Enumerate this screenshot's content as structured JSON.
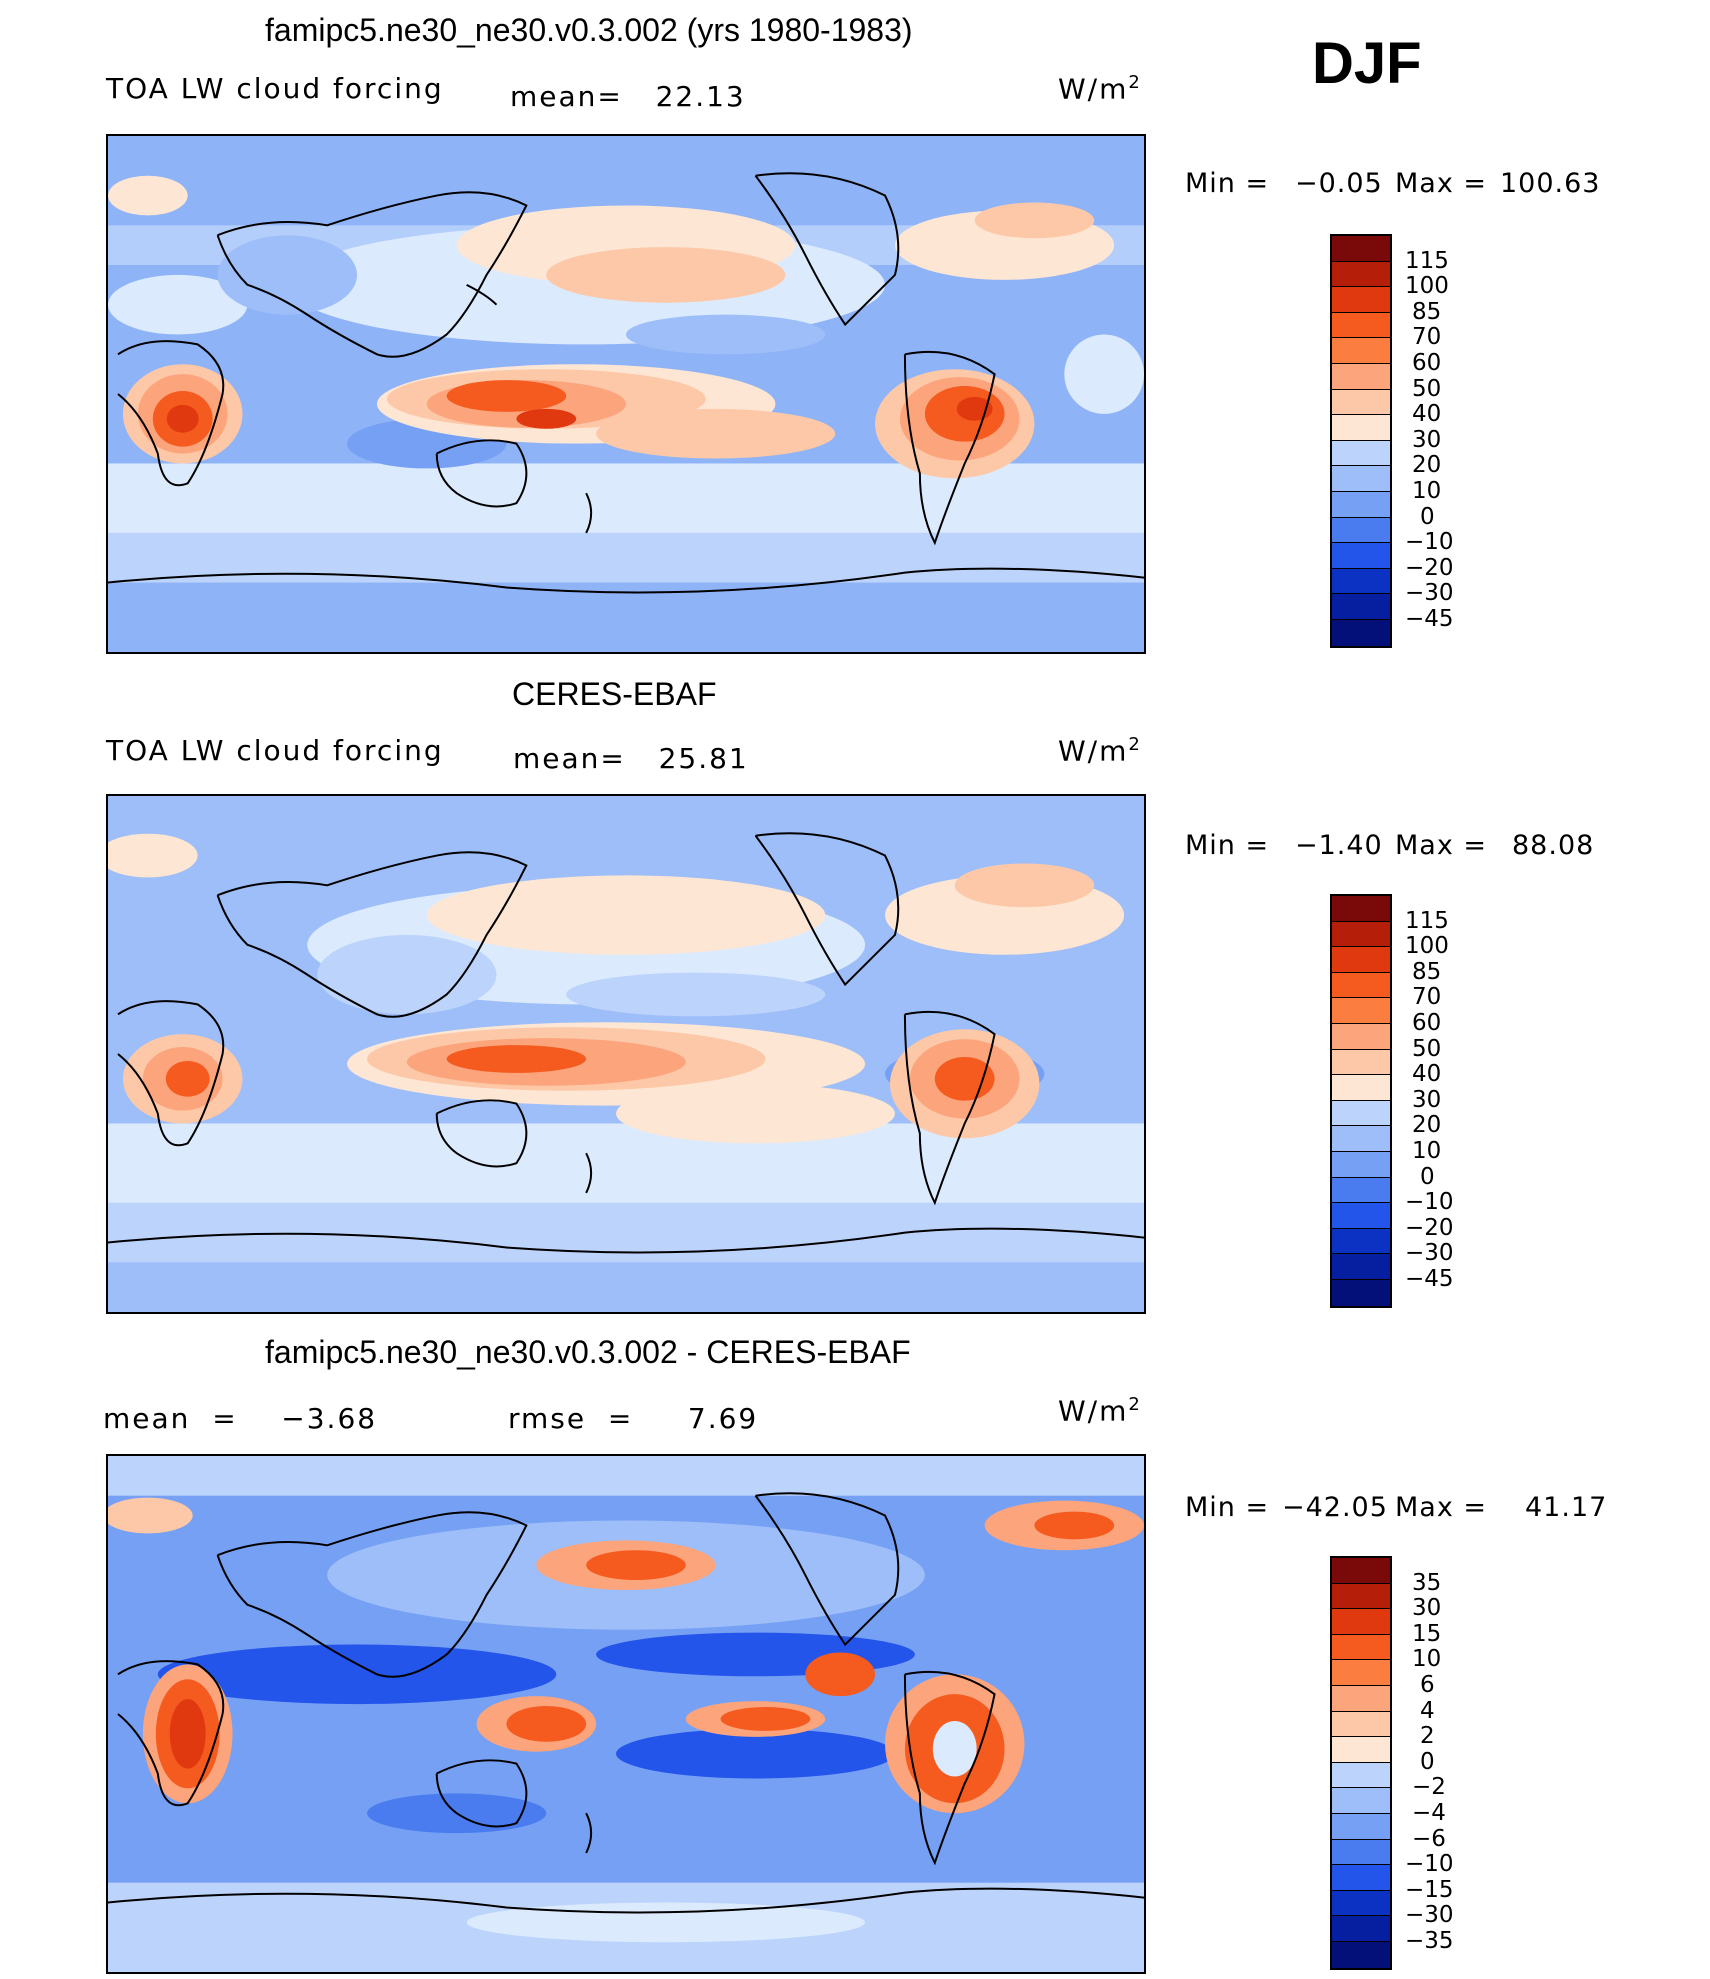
{
  "season": "DJF",
  "panels": [
    {
      "title": "famipc5.ne30_ne30.v0.3.002 (yrs 1980-1983)",
      "left": "TOA LW cloud forcing",
      "stat1": "mean=   22.13",
      "stat2": "",
      "units": "W/m",
      "units_sup": "2",
      "min_label": "Min  =",
      "min_value": "−0.05",
      "max_label": "Max  =",
      "max_value": "100.63",
      "legend": [
        "115",
        "100",
        "85",
        "70",
        "60",
        "50",
        "40",
        "30",
        "20",
        "10",
        "0",
        "−10",
        "−20",
        "−30",
        "−45"
      ]
    },
    {
      "title": "CERES-EBAF",
      "left": "TOA LW cloud forcing",
      "stat1": "mean=   25.81",
      "stat2": "",
      "units": "W/m",
      "units_sup": "2",
      "min_label": "Min  =",
      "min_value": "−1.40",
      "max_label": "Max  =",
      "max_value": "88.08",
      "legend": [
        "115",
        "100",
        "85",
        "70",
        "60",
        "50",
        "40",
        "30",
        "20",
        "10",
        "0",
        "−10",
        "−20",
        "−30",
        "−45"
      ]
    },
    {
      "title": "famipc5.ne30_ne30.v0.3.002 - CERES-EBAF",
      "left": "mean  =    −3.68",
      "stat1": "rmse  =     7.69",
      "stat2": "",
      "units": "W/m",
      "units_sup": "2",
      "min_label": "Min  =",
      "min_value": "−42.05",
      "max_label": "Max  =",
      "max_value": "41.17",
      "legend": [
        "35",
        "30",
        "15",
        "10",
        "6",
        "4",
        "2",
        "0",
        "−2",
        "−4",
        "−6",
        "−10",
        "−15",
        "−30",
        "−35"
      ]
    }
  ],
  "colors": {
    "scale": [
      "#7a0a0a",
      "#b51f0a",
      "#e0380f",
      "#f55a1e",
      "#fb7d40",
      "#fca47c",
      "#fdc8a8",
      "#fde6d3",
      "#dbeafd",
      "#bcd4fb",
      "#9dbef8",
      "#76a0f3",
      "#4a7cf0",
      "#2355ea",
      "#0c32c4",
      "#061ea0",
      "#03107a"
    ]
  },
  "chart_data": [
    {
      "type": "heatmap",
      "title": "famipc5.ne30_ne30.v0.3.002 (yrs 1980-1983)",
      "variable": "TOA LW cloud forcing",
      "units": "W/m2",
      "mean": 22.13,
      "min": -0.05,
      "max": 100.63,
      "contour_levels": [
        -45,
        -30,
        -20,
        -10,
        0,
        10,
        20,
        30,
        40,
        50,
        60,
        70,
        85,
        100,
        115
      ]
    },
    {
      "type": "heatmap",
      "title": "CERES-EBAF",
      "variable": "TOA LW cloud forcing",
      "units": "W/m2",
      "mean": 25.81,
      "min": -1.4,
      "max": 88.08,
      "contour_levels": [
        -45,
        -30,
        -20,
        -10,
        0,
        10,
        20,
        30,
        40,
        50,
        60,
        70,
        85,
        100,
        115
      ]
    },
    {
      "type": "heatmap",
      "title": "famipc5.ne30_ne30.v0.3.002 - CERES-EBAF",
      "units": "W/m2",
      "mean": -3.68,
      "rmse": 7.69,
      "min": -42.05,
      "max": 41.17,
      "contour_levels": [
        -35,
        -30,
        -15,
        -10,
        -6,
        -4,
        -2,
        0,
        2,
        4,
        6,
        10,
        15,
        30,
        35
      ]
    }
  ]
}
